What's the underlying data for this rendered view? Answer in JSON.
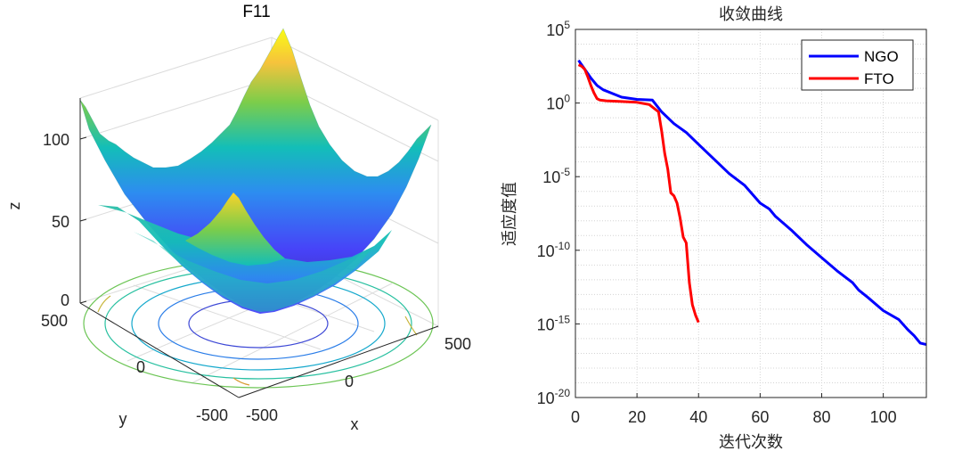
{
  "chart_data": [
    {
      "type": "surface3d",
      "title": "F11",
      "xlabel": "x",
      "ylabel": "y",
      "zlabel": "z",
      "x_ticks": [
        "-500",
        "0",
        "500"
      ],
      "y_ticks": [
        "-500",
        "0",
        "500"
      ],
      "z_ticks": [
        "0",
        "50",
        "100"
      ],
      "xlim": [
        -600,
        600
      ],
      "ylim": [
        -600,
        600
      ],
      "zlim": [
        0,
        125
      ],
      "colormap": [
        "#3e26a8",
        "#4743f8",
        "#2d8cf0",
        "#13beb8",
        "#7ccd4a",
        "#f6c33c",
        "#f9fb15"
      ]
    },
    {
      "type": "line",
      "title": "收敛曲线",
      "xlabel": "迭代次数",
      "ylabel": "适应度值",
      "yscale": "log",
      "xlim": [
        0,
        114
      ],
      "ylim_exp": [
        -20,
        5
      ],
      "x_ticks": [
        "0",
        "20",
        "40",
        "60",
        "80",
        "100"
      ],
      "y_tick_base": "10",
      "y_tick_exps": [
        "5",
        "0",
        "-5",
        "-10",
        "-15",
        "-20"
      ],
      "grid": true,
      "legend_position": "top-right",
      "series": [
        {
          "name": "NGO",
          "color": "#0000ff",
          "x": [
            1,
            3,
            5,
            7,
            9,
            12,
            15,
            20,
            25,
            28,
            32,
            36,
            40,
            45,
            50,
            55,
            60,
            63,
            65,
            70,
            75,
            80,
            85,
            90,
            92,
            95,
            100,
            105,
            108,
            110,
            112,
            114
          ],
          "log10y": [
            2.9,
            2.3,
            1.7,
            1.2,
            0.9,
            0.65,
            0.4,
            0.25,
            0.2,
            -0.6,
            -1.4,
            -2.0,
            -2.8,
            -3.8,
            -4.8,
            -5.6,
            -6.8,
            -7.2,
            -7.7,
            -8.6,
            -9.6,
            -10.5,
            -11.4,
            -12.2,
            -12.7,
            -13.2,
            -14.1,
            -14.7,
            -15.4,
            -15.8,
            -16.3,
            -16.4
          ]
        },
        {
          "name": "FTO",
          "color": "#ff0000",
          "x": [
            1,
            2,
            3,
            4,
            5,
            6,
            7,
            8,
            10,
            15,
            20,
            24,
            27,
            28,
            29,
            30,
            31,
            32,
            33,
            34,
            35,
            36,
            37,
            38,
            39,
            40
          ],
          "log10y": [
            2.6,
            2.5,
            2.3,
            1.8,
            1.2,
            0.7,
            0.3,
            0.2,
            0.15,
            0.1,
            0.05,
            -0.1,
            -0.6,
            -1.9,
            -3.4,
            -4.5,
            -6.1,
            -6.3,
            -6.8,
            -7.8,
            -9.1,
            -9.5,
            -12.2,
            -13.7,
            -14.4,
            -14.9
          ]
        }
      ]
    }
  ]
}
